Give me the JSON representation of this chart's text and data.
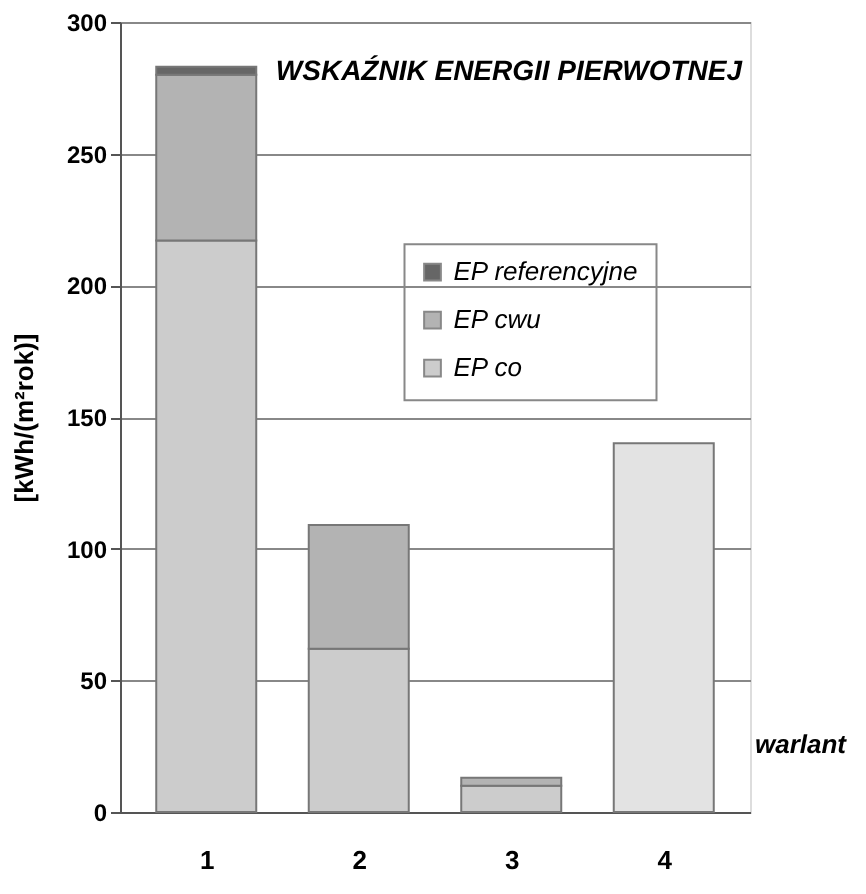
{
  "chart_data": {
    "type": "bar",
    "stacked": true,
    "title": "WSKAŹNIK ENERGII PIERWOTNEJ",
    "xlabel": "warlant",
    "ylabel": "[kWh/(m²rok)]",
    "categories": [
      "1",
      "2",
      "3",
      "4"
    ],
    "series": [
      {
        "name": "EP co",
        "color": "#cccccc",
        "values": [
          217,
          62,
          10,
          null
        ]
      },
      {
        "name": "EP cwu",
        "color": "#b3b3b3",
        "values": [
          63,
          47,
          3,
          null
        ]
      },
      {
        "name": "EP referencyjne",
        "color": "#666666",
        "values": [
          3,
          null,
          null,
          null
        ]
      },
      {
        "color": "#e3e3e3",
        "values": [
          null,
          null,
          null,
          140
        ]
      }
    ],
    "ylim": [
      0,
      300
    ],
    "yticks": [
      0,
      50,
      100,
      150,
      200,
      250,
      300
    ],
    "grid": "y",
    "legend": "right"
  }
}
